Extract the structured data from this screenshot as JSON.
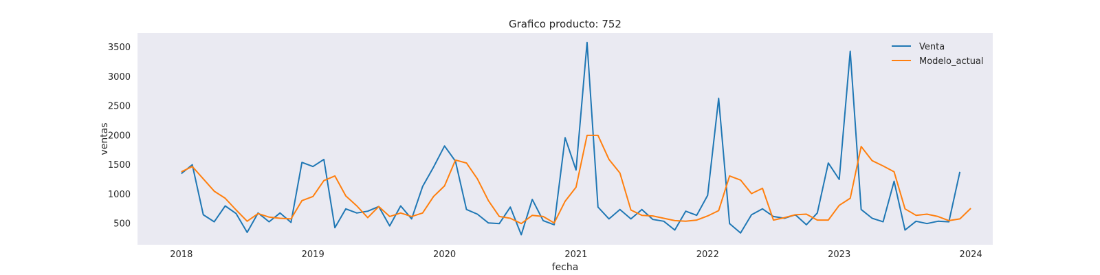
{
  "chart_data": {
    "type": "line",
    "title": "Grafico producto: 752",
    "xlabel": "fecha",
    "ylabel": "ventas",
    "x_start": "2018-01",
    "x_ticks": [
      "2018",
      "2019",
      "2020",
      "2021",
      "2022",
      "2023",
      "2024"
    ],
    "y_ticks": [
      500,
      1000,
      1500,
      2000,
      2500,
      3000,
      3500
    ],
    "xlim": [
      "2017-09",
      "2024-03"
    ],
    "ylim": [
      140,
      3740
    ],
    "grid": false,
    "legend_position": "top-right",
    "series": [
      {
        "name": "Venta",
        "color": "#1f77b4",
        "values": [
          1350,
          1500,
          650,
          530,
          800,
          670,
          350,
          680,
          530,
          680,
          520,
          1540,
          1470,
          1590,
          430,
          750,
          680,
          710,
          790,
          460,
          800,
          580,
          1130,
          1460,
          1820,
          1560,
          740,
          660,
          510,
          500,
          780,
          310,
          910,
          550,
          480,
          1960,
          1410,
          3580,
          780,
          580,
          740,
          580,
          740,
          570,
          540,
          390,
          710,
          640,
          980,
          2630,
          500,
          340,
          650,
          750,
          620,
          590,
          650,
          480,
          680,
          1530,
          1250,
          3430,
          740,
          590,
          530,
          1220,
          390,
          540,
          500,
          540,
          530,
          1380
        ]
      },
      {
        "name": "Modelo_actual",
        "color": "#ff7f0e",
        "values": [
          1380,
          1470,
          1260,
          1050,
          930,
          730,
          540,
          670,
          610,
          590,
          580,
          890,
          960,
          1230,
          1310,
          970,
          800,
          600,
          790,
          620,
          680,
          620,
          680,
          960,
          1140,
          1580,
          1530,
          1260,
          890,
          620,
          590,
          500,
          640,
          620,
          510,
          880,
          1120,
          2000,
          2000,
          1590,
          1360,
          730,
          640,
          630,
          590,
          550,
          540,
          560,
          630,
          720,
          1310,
          1240,
          1010,
          1100,
          560,
          600,
          650,
          660,
          560,
          560,
          810,
          930,
          1810,
          1570,
          1480,
          1380,
          750,
          640,
          660,
          620,
          550,
          580,
          760
        ]
      }
    ]
  }
}
